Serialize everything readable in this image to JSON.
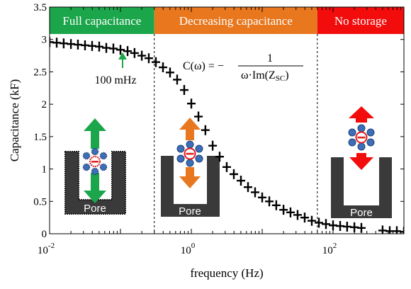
{
  "chart_data": {
    "type": "scatter",
    "xlabel": "frequency (Hz)",
    "ylabel": "Capacitance (kF)",
    "x_scale": "log",
    "xlim": [
      0.01,
      1000
    ],
    "ylim": [
      0,
      3.5
    ],
    "y_ticks": [
      "0",
      "0.5",
      "1",
      "1.5",
      "2",
      "2.5",
      "3",
      "3.5"
    ],
    "x_ticks": [
      {
        "base": "10",
        "exp": "-2"
      },
      {
        "base": "10",
        "exp": "0"
      },
      {
        "base": "10",
        "exp": "2"
      }
    ],
    "grid": false,
    "marker": "plus",
    "x": [
      0.01,
      0.0126,
      0.0158,
      0.02,
      0.0251,
      0.0316,
      0.0398,
      0.0501,
      0.0631,
      0.0794,
      0.1,
      0.126,
      0.158,
      0.2,
      0.251,
      0.316,
      0.398,
      0.501,
      0.631,
      0.794,
      1.0,
      1.26,
      1.58,
      2.0,
      2.51,
      3.16,
      3.98,
      5.01,
      6.31,
      7.94,
      10.0,
      12.6,
      15.8,
      20.0,
      25.1,
      31.6,
      39.8,
      50.1,
      63.1,
      79.4,
      100,
      126,
      158,
      200,
      251,
      500,
      631,
      794,
      1000
    ],
    "y": [
      2.96,
      2.95,
      2.94,
      2.93,
      2.92,
      2.91,
      2.9,
      2.89,
      2.87,
      2.86,
      2.84,
      2.82,
      2.79,
      2.75,
      2.71,
      2.65,
      2.57,
      2.49,
      2.38,
      2.22,
      2.01,
      1.81,
      1.6,
      1.36,
      1.19,
      1.03,
      0.92,
      0.82,
      0.72,
      0.64,
      0.56,
      0.5,
      0.44,
      0.37,
      0.33,
      0.29,
      0.25,
      0.2,
      0.17,
      0.15,
      0.13,
      0.12,
      0.11,
      0.1,
      0.09,
      0.05,
      0.04,
      0.04,
      0.03
    ],
    "dividers_x": [
      0.3,
      60
    ],
    "regions": [
      {
        "label": "Full capacitance",
        "from": 0.01,
        "to": 0.3,
        "color": "#1ca64c"
      },
      {
        "label": "Decreasing capacitance",
        "from": 0.3,
        "to": 60,
        "color": "#e8771e"
      },
      {
        "label": "No storage",
        "from": 60,
        "to": 1000,
        "color": "#f20c0c"
      }
    ],
    "annotations": {
      "marker_label": "100 mHz",
      "marker_x": 0.1,
      "formula": {
        "lhs": "C(ω) = −",
        "numerator": "1",
        "denominator": "ω·Im(Z",
        "subscript": "SC",
        "close": ")"
      },
      "pore_label": "Pore"
    },
    "colors": {
      "green": "#1ca64c",
      "orange": "#e8771e",
      "red": "#f20c0c",
      "ion_blue": "#3d6fb6",
      "ion_red": "#e02020",
      "pore": "#3a3a3a"
    }
  }
}
